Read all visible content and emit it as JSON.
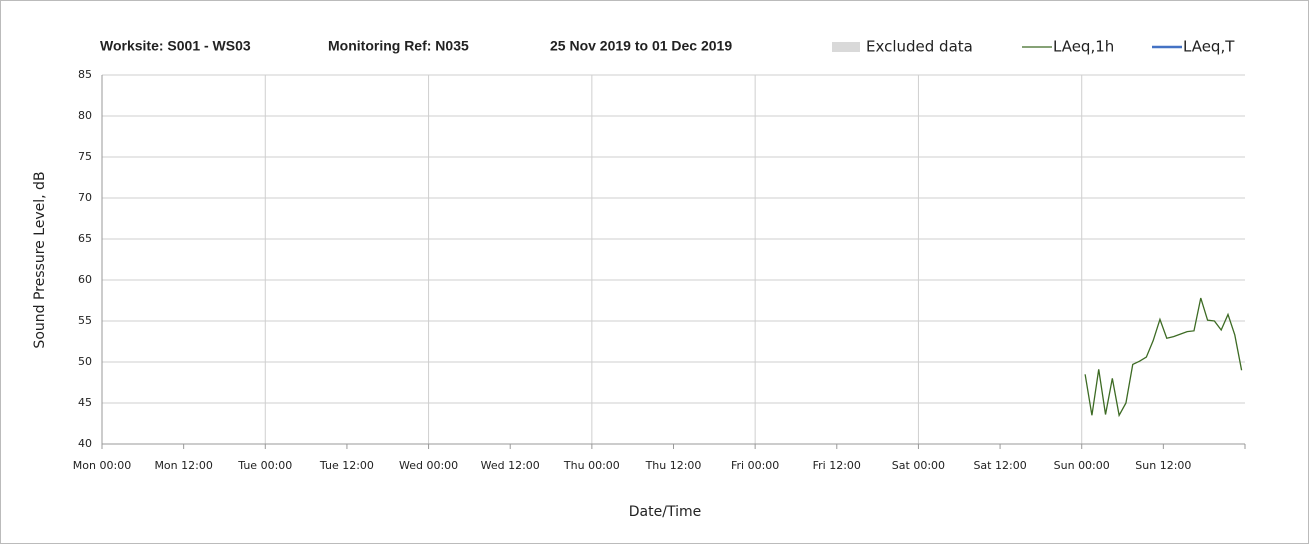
{
  "chart_data": {
    "type": "line",
    "title": [
      "Worksite: S001 - WS03",
      "Monitoring Ref: N035",
      "25 Nov 2019 to 01 Dec 2019"
    ],
    "xlabel": "Date/Time",
    "ylabel": "Sound Pressure Level, dB",
    "excluded": {
      "name": "Excluded data",
      "color": "#d9d9d9"
    },
    "x": [
      144.5,
      145.5,
      146.5,
      147.5,
      148.5,
      149.5,
      150.5,
      151.5,
      152.5,
      153.5,
      154.5,
      155.5,
      156.5,
      157.5,
      158.5,
      159.5,
      160.5,
      161.5,
      162.5,
      163.5,
      164.5,
      165.5,
      166.5,
      167.5
    ],
    "series": [
      {
        "name": "LAeq,1h",
        "color": "#3d6b24",
        "values": [
          48.5,
          43.5,
          49.1,
          43.6,
          48.0,
          43.5,
          45.0,
          49.7,
          50.1,
          50.6,
          52.6,
          55.2,
          52.9,
          53.1,
          53.4,
          53.7,
          53.8,
          57.8,
          55.1,
          55.0,
          53.9,
          55.8,
          53.3,
          49.0
        ]
      },
      {
        "name": "LAeq,T",
        "color": "#4472c4",
        "values": [
          null,
          null,
          null,
          null,
          null,
          null,
          null,
          null,
          null,
          null,
          null,
          null,
          null,
          null,
          null,
          null,
          null,
          null,
          null,
          null,
          null,
          null,
          null,
          null
        ]
      }
    ],
    "xlim": [
      0,
      168
    ],
    "xticks": [
      {
        "value": 0,
        "label": "Mon 00:00"
      },
      {
        "value": 12,
        "label": "Mon 12:00"
      },
      {
        "value": 24,
        "label": "Tue 00:00"
      },
      {
        "value": 36,
        "label": "Tue 12:00"
      },
      {
        "value": 48,
        "label": "Wed 00:00"
      },
      {
        "value": 60,
        "label": "Wed 12:00"
      },
      {
        "value": 72,
        "label": "Thu 00:00"
      },
      {
        "value": 84,
        "label": "Thu 12:00"
      },
      {
        "value": 96,
        "label": "Fri 00:00"
      },
      {
        "value": 108,
        "label": "Fri 12:00"
      },
      {
        "value": 120,
        "label": "Sat 00:00"
      },
      {
        "value": 132,
        "label": "Sat 12:00"
      },
      {
        "value": 144,
        "label": "Sun 00:00"
      },
      {
        "value": 156,
        "label": "Sun 12:00"
      }
    ],
    "ylim": [
      40,
      85
    ],
    "yticks": [
      40,
      45,
      50,
      55,
      60,
      65,
      70,
      75,
      80,
      85
    ],
    "grid": true
  }
}
